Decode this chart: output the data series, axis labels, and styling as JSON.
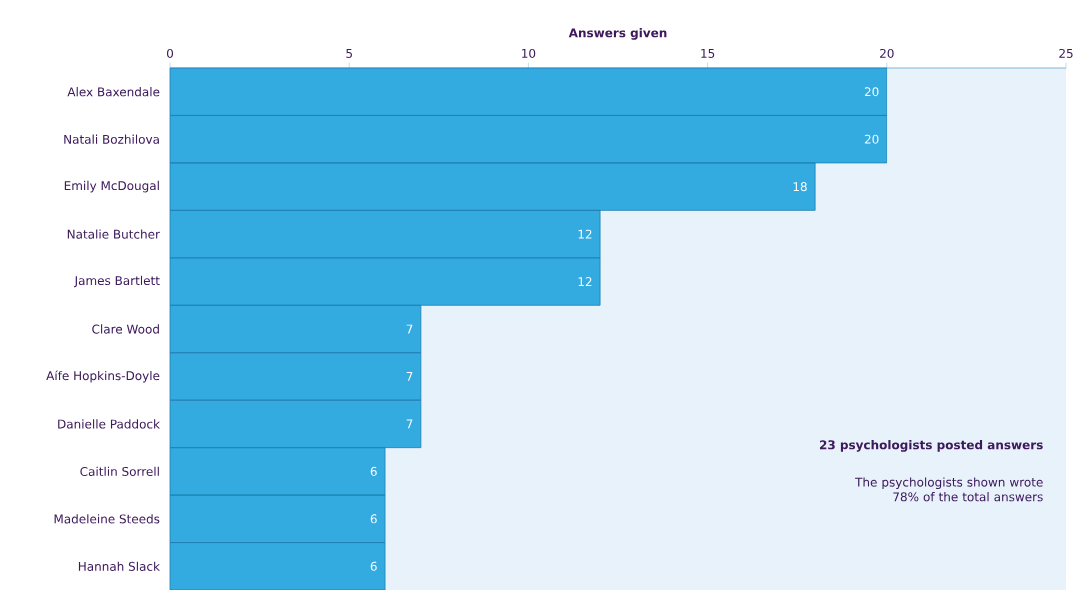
{
  "chart_data": {
    "type": "bar",
    "orientation": "horizontal",
    "xlabel": "Answers given",
    "categories": [
      "Alex Baxendale",
      "Natali Bozhilova",
      "Emily McDougal",
      "Natalie Butcher",
      "James Bartlett",
      "Clare Wood",
      "Aífe Hopkins-Doyle",
      "Danielle Paddock",
      "Caitlin Sorrell",
      "Madeleine Steeds",
      "Hannah Slack"
    ],
    "values": [
      20,
      20,
      18,
      12,
      12,
      7,
      7,
      7,
      6,
      6,
      6
    ],
    "color": "#33abe0",
    "xlim": [
      0,
      25
    ],
    "xticks": [
      0,
      5,
      10,
      15,
      20,
      25
    ],
    "data_labels": true,
    "grid": false,
    "annotations": [
      "23 psychologists posted answers",
      "The psychologists shown wrote 78% of the total answers"
    ]
  }
}
